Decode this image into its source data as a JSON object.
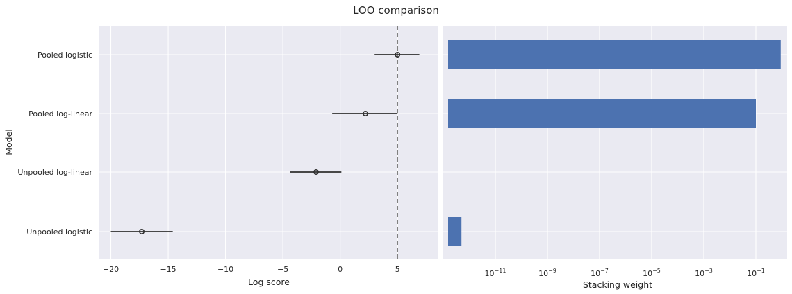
{
  "figure": {
    "title": "LOO comparison"
  },
  "chart_data": [
    {
      "type": "scatter",
      "subtype": "point-with-errorbar",
      "title": "",
      "xlabel": "Log score",
      "ylabel": "Model",
      "xlim": [
        -21,
        8.5
      ],
      "xticks": [
        -20,
        -15,
        -10,
        -5,
        0,
        5
      ],
      "xtick_labels": [
        "−20",
        "−15",
        "−10",
        "−5",
        "0",
        "5"
      ],
      "categories": [
        "Pooled logistic",
        "Pooled log-linear",
        "Unpooled log-linear",
        "Unpooled logistic"
      ],
      "values": [
        5.0,
        2.2,
        -2.1,
        -17.3
      ],
      "error_low": [
        3.0,
        -0.7,
        -4.4,
        -20.0
      ],
      "error_high": [
        6.9,
        5.0,
        0.1,
        -14.6
      ],
      "reference_line": 5.0,
      "grid": true
    },
    {
      "type": "bar",
      "orientation": "horizontal",
      "title": "",
      "xlabel": "Stacking weight",
      "ylabel": "",
      "xscale": "log",
      "xlim_log10": [
        -13.0,
        0.2
      ],
      "xticks_log10": [
        -11,
        -9,
        -7,
        -5,
        -3,
        -1
      ],
      "xtick_base": "10",
      "xtick_exponents": [
        "−11",
        "−9",
        "−7",
        "−5",
        "−3",
        "−1"
      ],
      "categories": [
        "Pooled logistic",
        "Pooled log-linear",
        "Unpooled log-linear",
        "Unpooled logistic"
      ],
      "values": [
        0.9,
        0.1,
        0,
        5e-13
      ],
      "bar_color": "#4c72b0",
      "grid": true
    }
  ],
  "colors": {
    "panel": "#eaeaf2",
    "grid": "#ffffff",
    "bar": "#4c72b0",
    "point": "#303030",
    "refline": "#808080"
  }
}
